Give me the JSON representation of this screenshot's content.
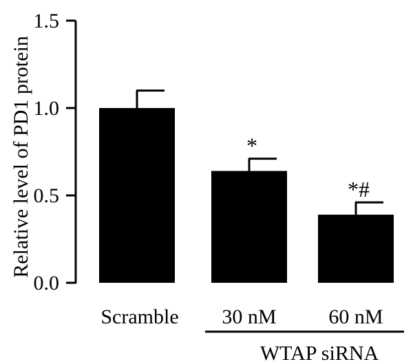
{
  "chart_data": {
    "type": "bar",
    "title": "",
    "ylabel": "Relative level of PD1 protein",
    "xlabel": "",
    "ylim": [
      0,
      1.5
    ],
    "yticks": [
      "0.0",
      "0.5",
      "1.0",
      "1.5"
    ],
    "categories": [
      "Scramble",
      "30 nM",
      "60 nM"
    ],
    "values": [
      1.0,
      0.64,
      0.39
    ],
    "errors": [
      0.1,
      0.07,
      0.07
    ],
    "significance": [
      "",
      "*",
      "*#"
    ],
    "group_label": "WTAP siRNA",
    "grid": false,
    "colors": {
      "bar": "#000000",
      "axis": "#000000"
    }
  }
}
